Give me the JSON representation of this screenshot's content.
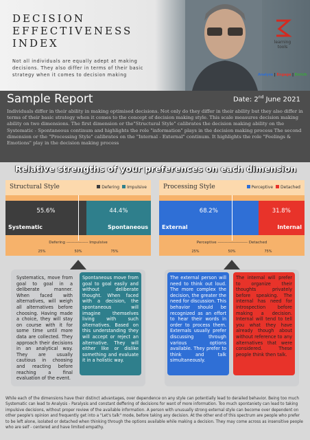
{
  "header": {
    "title_lines": [
      "DECISION",
      "EFFECTIVENESS",
      "INDEX"
    ],
    "subtitle": "Not all individuals are equally adept at making decisions. They also differ in terms of their basic strategy when it comes to decision making",
    "logo": [
      "learning",
      "tools"
    ],
    "tags": [
      "Analyse",
      "Engage",
      "Enrich"
    ]
  },
  "report": {
    "title": "Sample Report",
    "date_prefix": "Date: 2",
    "date_sup": "nd",
    "date_rest": " June 2021",
    "intro": "Individuals differ in their ability in making optimised decisions. Not only do they differ in their ability but they also differ in terms of their basic strategy when it comes to the concept of decision making style. This scale measures decision making ability on two dimensions. The first dimension or the\"Structural Style\" calibrates the decision making ability on the Systematic - Spontaneous continum and highlights the role \"information\" plays in the decision making process The second dimension or the \"Processing Style\" calibrates on the \"Internal - External\" continum. It highlights the role \"Feelings & Emotions\" play in the decision making process",
    "section_heading": "Relative strengths of your preferences on each dimension"
  },
  "dimensions": [
    {
      "title": "Structural Style",
      "legend": [
        "Defering",
        "Impulsive"
      ],
      "colors": [
        "#3d3d3d",
        "#2f7f8c"
      ],
      "values": [
        55.6,
        44.4
      ],
      "value_labels": [
        "55.6%",
        "44.4%"
      ],
      "names": [
        "Systematic",
        "Spontaneous"
      ],
      "scale_label": "Defering ---------------- Impulsive",
      "ticks": [
        {
          "value": 25,
          "label": "25%"
        },
        {
          "value": 50,
          "label": "50%"
        },
        {
          "value": 75,
          "label": "75%"
        }
      ],
      "descriptions": [
        "Systematics, move from goal to goal in a deliberate manner. When faced with alternatives, will weigh all alternatives before choosing. Having made a choice, they will stay on course with it for some time until more data are collected. They approach their decisions in an analytical way. They are usually cautious in choosing and reacting before reaching a final evaluation of the event.",
        "Spontaneous move from goal to goal easily and without deliberate thought. When faced with a decision, the spontaneous will imagine themselves living with such alternatives. Based on this understanding they will accept or reject an alternative. They will either like or dislike something and evaluate it in a holistic way."
      ]
    },
    {
      "title": "Processing Style",
      "legend": [
        "Perceptive",
        "Detached"
      ],
      "colors": [
        "#2f6fd6",
        "#e8332a"
      ],
      "values": [
        68.2,
        31.8
      ],
      "value_labels": [
        "68.2%",
        "31.8%"
      ],
      "names": [
        "External",
        "Internal"
      ],
      "scale_label": "Perceptive ---------------------- Detached",
      "ticks": [
        {
          "value": 25,
          "label": "25%"
        },
        {
          "value": 50,
          "label": "50%"
        },
        {
          "value": 75,
          "label": "75%"
        }
      ],
      "descriptions": [
        "The external person will need to think out loud. The more complex the decision, the greater the need for discussion. This behavior should be recognized as an effort to hear their words in order to process them. Externals usually prefer discussing through various options available. They prefer to think and talk simultaneously.",
        "The internal will prefer to organize their thoughts privately before speaking. The internal has need for introspection before making a decision. Internal will tend to tell you what they have already though about without reference to any alternatives that were considered. These people think then talk."
      ]
    }
  ],
  "footer": "While each of the dimensions have their distinct advantages, over dependence on any style can potentially lead to derailed behavior. Being too much Systematic can lead to Analysis - Paralysis and constant deffering of decisions for want of more information. Too much spontaniety can lead to taking impulsive decisions, without proper review of the available information. A person with unusually strong external style can become over dependent on other people's opinion and frequently get into a \"Let's talk\" mode, before taking any decision. At the other end of this spectrum are people who prefer to be left alone, isolated or detached when thinking through the options available while making a decision. They may come across as insensitive people who are self - centered and have limited empathy."
}
